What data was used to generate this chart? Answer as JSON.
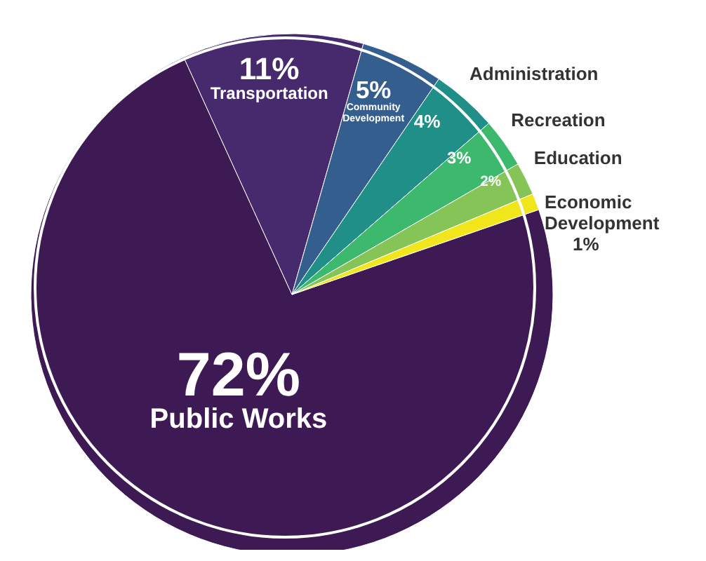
{
  "chart_data": {
    "type": "pie",
    "categories": [
      "Public Works",
      "Transportation",
      "Community Development",
      "Administration",
      "Recreation",
      "Education",
      "Economic Development"
    ],
    "values": [
      72,
      11,
      5,
      4,
      3,
      2,
      1
    ],
    "colors": [
      "#3e1a54",
      "#462a6d",
      "#335e8e",
      "#1f8f88",
      "#3db96e",
      "#85c456",
      "#f1e51c"
    ],
    "value_labels": [
      "72%",
      "11%",
      "5%",
      "4%",
      "3%",
      "2%",
      "1%"
    ]
  }
}
